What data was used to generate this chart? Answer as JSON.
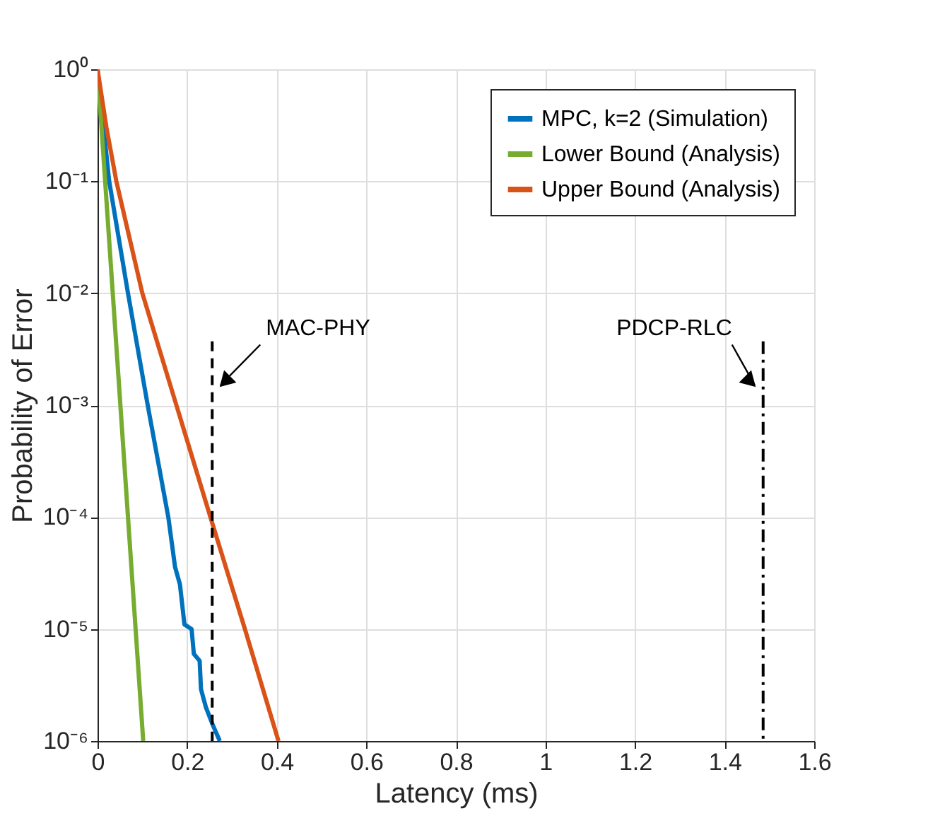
{
  "chart_data": {
    "type": "line",
    "xlabel": "Latency (ms)",
    "ylabel": "Probability of Error",
    "log": "y",
    "grid": true,
    "legend": "top right",
    "line_style": "solid",
    "marker": "none",
    "xlim": [
      0,
      1.6
    ],
    "xticks": [
      0,
      0.2,
      0.4,
      0.6,
      0.8,
      1,
      1.2,
      1.4,
      1.6
    ],
    "ylim": [
      1e-06,
      1
    ],
    "yticks": [
      {
        "value": 1e-06,
        "label": "10⁻⁶"
      },
      {
        "value": 1e-05,
        "label": "10⁻⁵"
      },
      {
        "value": 0.0001,
        "label": "10⁻⁴"
      },
      {
        "value": 0.001,
        "label": "10⁻³"
      },
      {
        "value": 0.01,
        "label": "10⁻²"
      },
      {
        "value": 0.1,
        "label": "10⁻¹"
      },
      {
        "value": 1,
        "label": "10⁰"
      }
    ],
    "series": [
      {
        "name": "MPC, k=2 (Simulation)",
        "color": "#0072bd",
        "x": [
          0,
          0.026,
          0.068,
          0.112,
          0.158,
          0.173,
          0.184,
          0.194,
          0.21,
          0.215,
          0.228,
          0.231,
          0.242,
          0.257,
          0.273
        ],
        "values": [
          1,
          0.1,
          0.01,
          0.001,
          0.0001,
          3.6e-05,
          2.5e-05,
          1.1e-05,
          1e-05,
          6e-06,
          5.2e-06,
          2.9e-06,
          2e-06,
          1.4e-06,
          1e-06
        ]
      },
      {
        "name": "Lower Bound (Analysis)",
        "color": "#77ac30",
        "x": [
          0,
          0.102
        ],
        "values": [
          1,
          1e-06
        ]
      },
      {
        "name": "Upper Bound (Analysis)",
        "color": "#d95319",
        "x": [
          0,
          0.02,
          0.042,
          0.1,
          0.176,
          0.252,
          0.329,
          0.404
        ],
        "values": [
          1,
          0.3,
          0.1,
          0.01,
          0.001,
          0.0001,
          1e-05,
          1e-06
        ]
      }
    ],
    "ref_lines": [
      {
        "axis": "x",
        "value": 0.256,
        "label": "MAC-PHY",
        "line_style": "dashed",
        "color": "#000000"
      },
      {
        "axis": "x",
        "value": 1.486,
        "label": "PDCP-RLC",
        "line_style": "dashdot",
        "color": "#000000"
      }
    ]
  }
}
